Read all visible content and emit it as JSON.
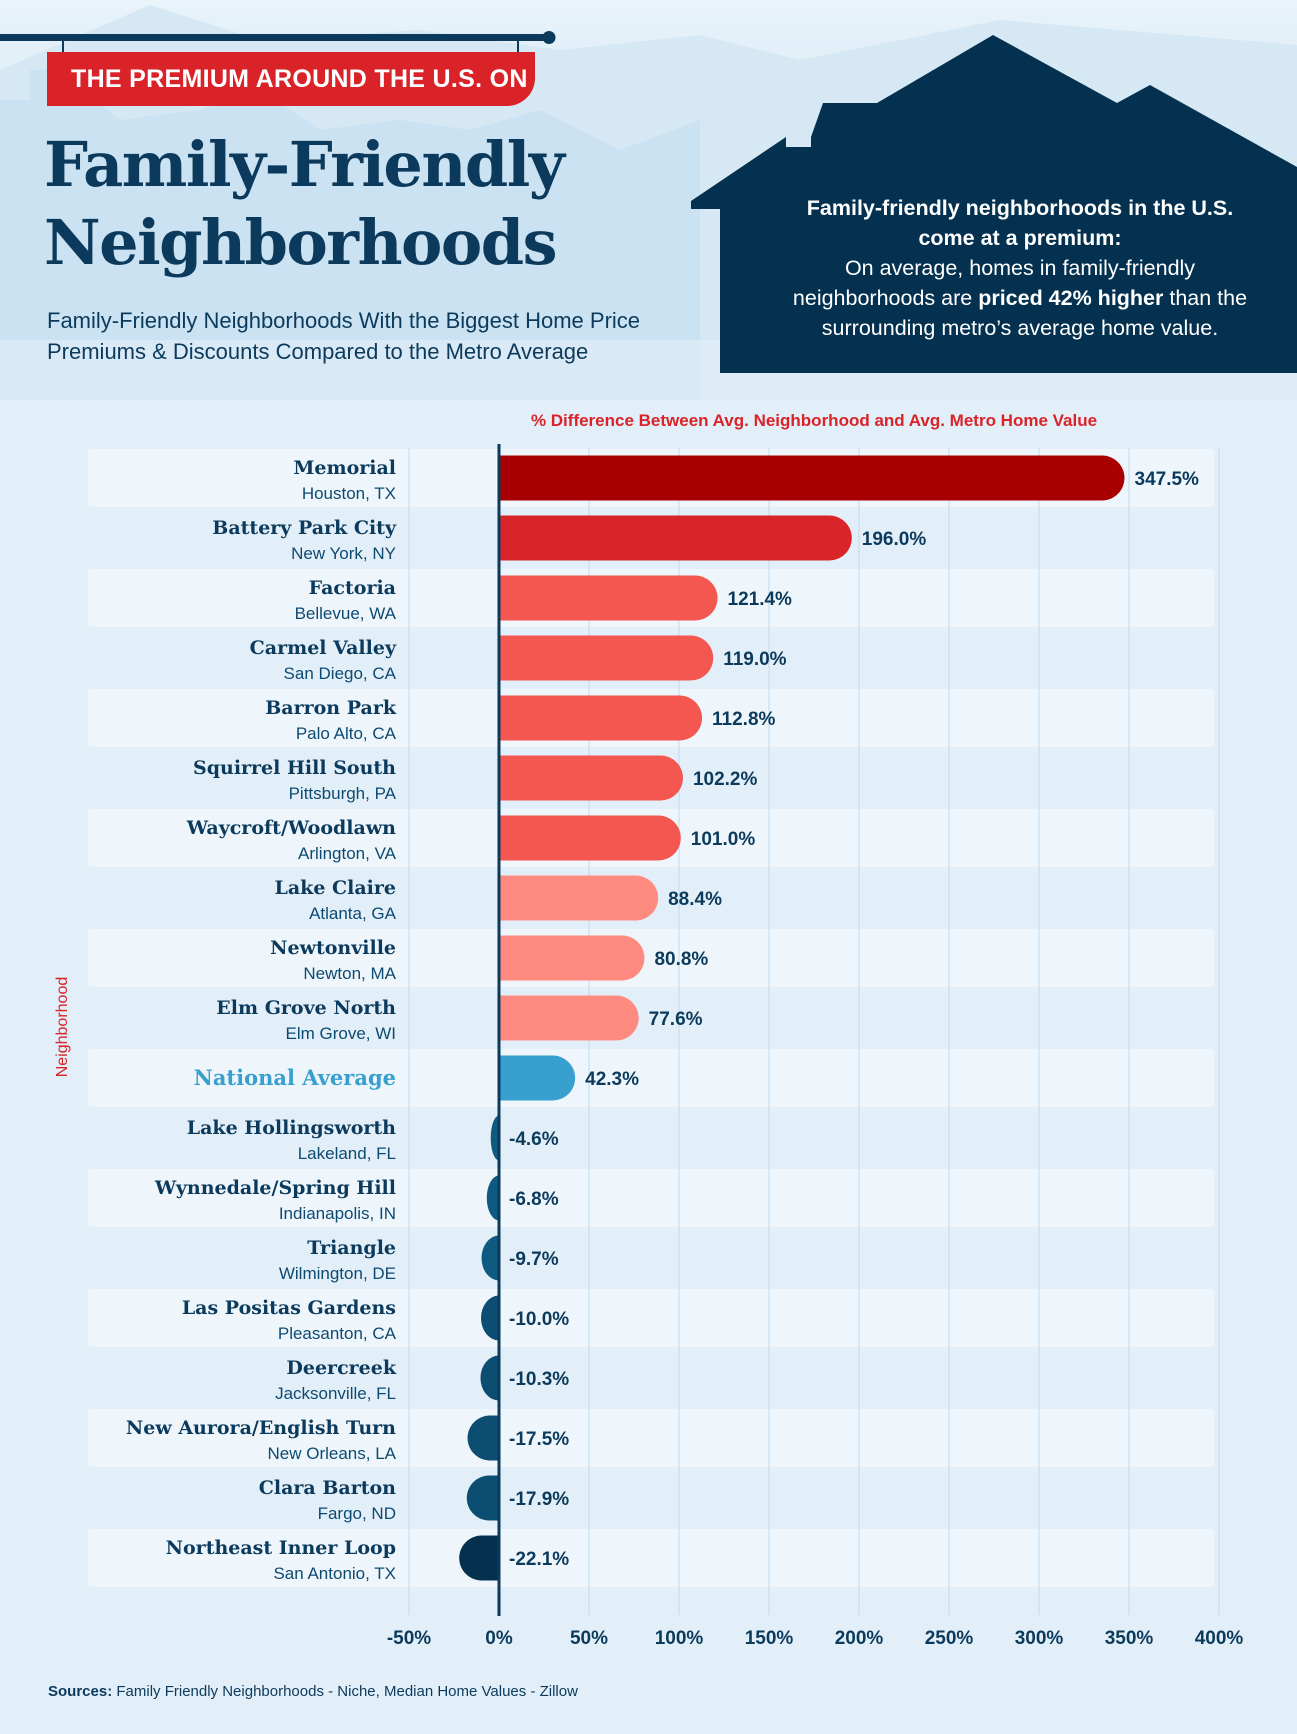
{
  "header": {
    "banner": "THE PREMIUM AROUND THE U.S. ON",
    "title_line1": "Family-Friendly",
    "title_line2": "Neighborhoods",
    "subtitle_line1": "Family-Friendly Neighborhoods With the Biggest Home Price",
    "subtitle_line2": "Premiums & Discounts Compared to the Metro Average"
  },
  "callout": {
    "line1": "Family-friendly neighborhoods in the U.S.",
    "line2": "come at a premium:",
    "line3": "On average, homes in family-friendly",
    "line4_pre": "neighborhoods are ",
    "line4_bold": "priced 42% higher",
    "line4_post": " than the",
    "line5": "surrounding metro’s average home value."
  },
  "sources": {
    "label": "Sources:",
    "text": " Family Friendly Neighborhoods - Niche, Median Home Values - Zillow"
  },
  "colors": {
    "navy": "#0b3a5c",
    "red_top": "#a80000",
    "red_second": "#d9252a",
    "red_mid": "#f45650",
    "red_light": "#ff8a80",
    "national": "#38a0cf",
    "negative": "#0f5a80",
    "negative_darkest": "#05304e"
  },
  "chart_data": {
    "type": "bar",
    "orientation": "horizontal",
    "title": "% Difference Between Avg. Neighborhood and Avg. Metro Home Value",
    "ylabel": "Neighborhood",
    "xlabel": "",
    "xlim": [
      -50,
      400
    ],
    "xticks": [
      "-50%",
      "0%",
      "50%",
      "100%",
      "150%",
      "200%",
      "250%",
      "300%",
      "350%",
      "400%"
    ],
    "grid": true,
    "categories": [
      {
        "name": "Memorial",
        "city": "Houston, TX",
        "value": 347.5,
        "label": "347.5%",
        "color": "#a80000"
      },
      {
        "name": "Battery Park City",
        "city": "New York, NY",
        "value": 196.0,
        "label": "196.0%",
        "color": "#d9252a"
      },
      {
        "name": "Factoria",
        "city": "Bellevue, WA",
        "value": 121.4,
        "label": "121.4%",
        "color": "#f45650"
      },
      {
        "name": "Carmel Valley",
        "city": "San Diego, CA",
        "value": 119.0,
        "label": "119.0%",
        "color": "#f45650"
      },
      {
        "name": "Barron Park",
        "city": "Palo Alto, CA",
        "value": 112.8,
        "label": "112.8%",
        "color": "#f45650"
      },
      {
        "name": "Squirrel Hill South",
        "city": "Pittsburgh, PA",
        "value": 102.2,
        "label": "102.2%",
        "color": "#f45650"
      },
      {
        "name": "Waycroft/Woodlawn",
        "city": "Arlington, VA",
        "value": 101.0,
        "label": "101.0%",
        "color": "#f45650"
      },
      {
        "name": "Lake Claire",
        "city": "Atlanta, GA",
        "value": 88.4,
        "label": "88.4%",
        "color": "#ff8a80"
      },
      {
        "name": "Newtonville",
        "city": "Newton, MA",
        "value": 80.8,
        "label": "80.8%",
        "color": "#ff8a80"
      },
      {
        "name": "Elm Grove North",
        "city": "Elm Grove, WI",
        "value": 77.6,
        "label": "77.6%",
        "color": "#ff8a80"
      },
      {
        "name": "National Average",
        "city": "",
        "value": 42.3,
        "label": "42.3%",
        "color": "#38a0cf",
        "highlight": true
      },
      {
        "name": "Lake Hollingsworth",
        "city": "Lakeland, FL",
        "value": -4.6,
        "label": "-4.6%",
        "color": "#0f5a80"
      },
      {
        "name": "Wynnedale/Spring Hill",
        "city": "Indianapolis, IN",
        "value": -6.8,
        "label": "-6.8%",
        "color": "#0f5a80"
      },
      {
        "name": "Triangle",
        "city": "Wilmington, DE",
        "value": -9.7,
        "label": "-9.7%",
        "color": "#0f5a80"
      },
      {
        "name": "Las Positas Gardens",
        "city": "Pleasanton, CA",
        "value": -10.0,
        "label": "-10.0%",
        "color": "#0c4e72"
      },
      {
        "name": "Deercreek",
        "city": "Jacksonville, FL",
        "value": -10.3,
        "label": "-10.3%",
        "color": "#0c4e72"
      },
      {
        "name": "New Aurora/English Turn",
        "city": "New Orleans, LA",
        "value": -17.5,
        "label": "-17.5%",
        "color": "#0c4e72"
      },
      {
        "name": "Clara Barton",
        "city": "Fargo, ND",
        "value": -17.9,
        "label": "-17.9%",
        "color": "#0c4e72"
      },
      {
        "name": "Northeast Inner Loop",
        "city": "San Antonio, TX",
        "value": -22.1,
        "label": "-22.1%",
        "color": "#05304e"
      }
    ]
  }
}
